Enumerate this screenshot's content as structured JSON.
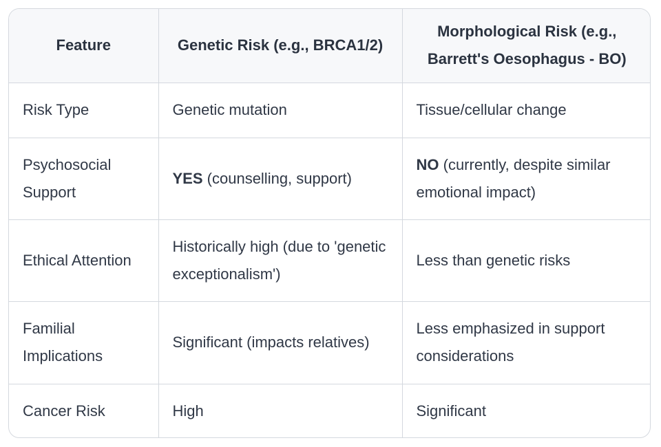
{
  "table": {
    "headers": [
      "Feature",
      "Genetic Risk (e.g., BRCA1/2)",
      "Morphological Risk (e.g., Barrett's Oesophagus - BO)"
    ],
    "rows": [
      {
        "feature": "Risk Type",
        "genetic": "Genetic mutation",
        "morphological": "Tissue/cellular change"
      },
      {
        "feature": "Psychosocial Support",
        "genetic_em": "YES",
        "genetic": "(counselling, support)",
        "morphological_em": "NO",
        "morphological": "(currently, despite similar emotional impact)"
      },
      {
        "feature": "Ethical Attention",
        "genetic": "Historically high (due to 'genetic exceptionalism')",
        "morphological": "Less than genetic risks"
      },
      {
        "feature": "Familial Implications",
        "genetic": "Significant (impacts relatives)",
        "morphological": "Less emphasized in support considerations"
      },
      {
        "feature": "Cancer Risk",
        "genetic": "High",
        "morphological": "Significant"
      }
    ]
  }
}
